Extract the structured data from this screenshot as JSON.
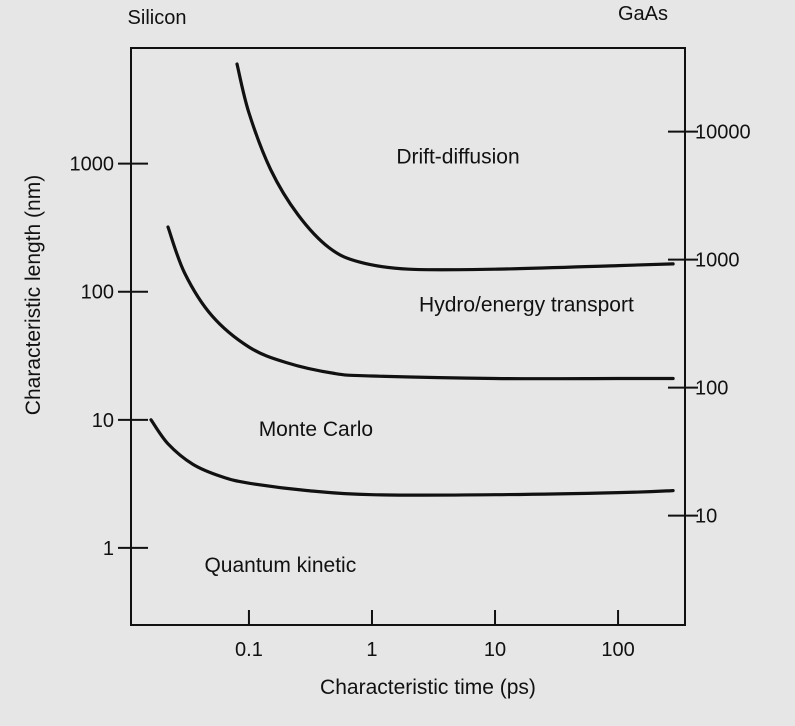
{
  "chart_data": {
    "type": "line",
    "left_axis_title": "Silicon",
    "right_axis_title": "GaAs",
    "xlabel": "Characteristic time (ps)",
    "ylabel": "Characteristic length (nm)",
    "x_scale": "log",
    "y_scale": "log",
    "xlim": [
      0.011,
      350
    ],
    "ylim": [
      0.25,
      8000
    ],
    "right_ylim": [
      1.4,
      45000
    ],
    "x_ticks": [
      {
        "value": 0.1,
        "label": "0.1"
      },
      {
        "value": 1,
        "label": "1"
      },
      {
        "value": 10,
        "label": "10"
      },
      {
        "value": 100,
        "label": "100"
      }
    ],
    "y_ticks": [
      {
        "value": 1,
        "label": "1"
      },
      {
        "value": 10,
        "label": "10"
      },
      {
        "value": 100,
        "label": "100"
      },
      {
        "value": 1000,
        "label": "1000"
      }
    ],
    "right_y_ticks": [
      {
        "value": 10,
        "label": "10"
      },
      {
        "value": 100,
        "label": "100"
      },
      {
        "value": 1000,
        "label": "1000"
      },
      {
        "value": 10000,
        "label": "10000"
      }
    ],
    "grid": false,
    "series": [
      {
        "x": [
          0.08,
          0.1,
          0.15,
          0.25,
          0.45,
          0.8,
          2,
          10,
          100,
          280
        ],
        "y": [
          6000,
          2500,
          900,
          400,
          220,
          170,
          150,
          150,
          160,
          165
        ]
      },
      {
        "x": [
          0.022,
          0.03,
          0.05,
          0.1,
          0.2,
          0.5,
          1,
          10,
          100,
          280
        ],
        "y": [
          320,
          140,
          65,
          37,
          28,
          23,
          22,
          21,
          21,
          21
        ]
      },
      {
        "x": [
          0.016,
          0.022,
          0.035,
          0.06,
          0.1,
          0.3,
          1,
          10,
          100,
          280
        ],
        "y": [
          10,
          6.5,
          4.5,
          3.6,
          3.2,
          2.8,
          2.6,
          2.6,
          2.7,
          2.8
        ]
      }
    ],
    "regions": [
      {
        "label": "Drift-diffusion",
        "x": 5,
        "y": 1000
      },
      {
        "label": "Hydro/energy transport",
        "x": 18,
        "y": 70
      },
      {
        "label": "Monte Carlo",
        "x": 0.35,
        "y": 7.5
      },
      {
        "label": "Quantum kinetic",
        "x": 0.18,
        "y": 0.65
      }
    ]
  }
}
